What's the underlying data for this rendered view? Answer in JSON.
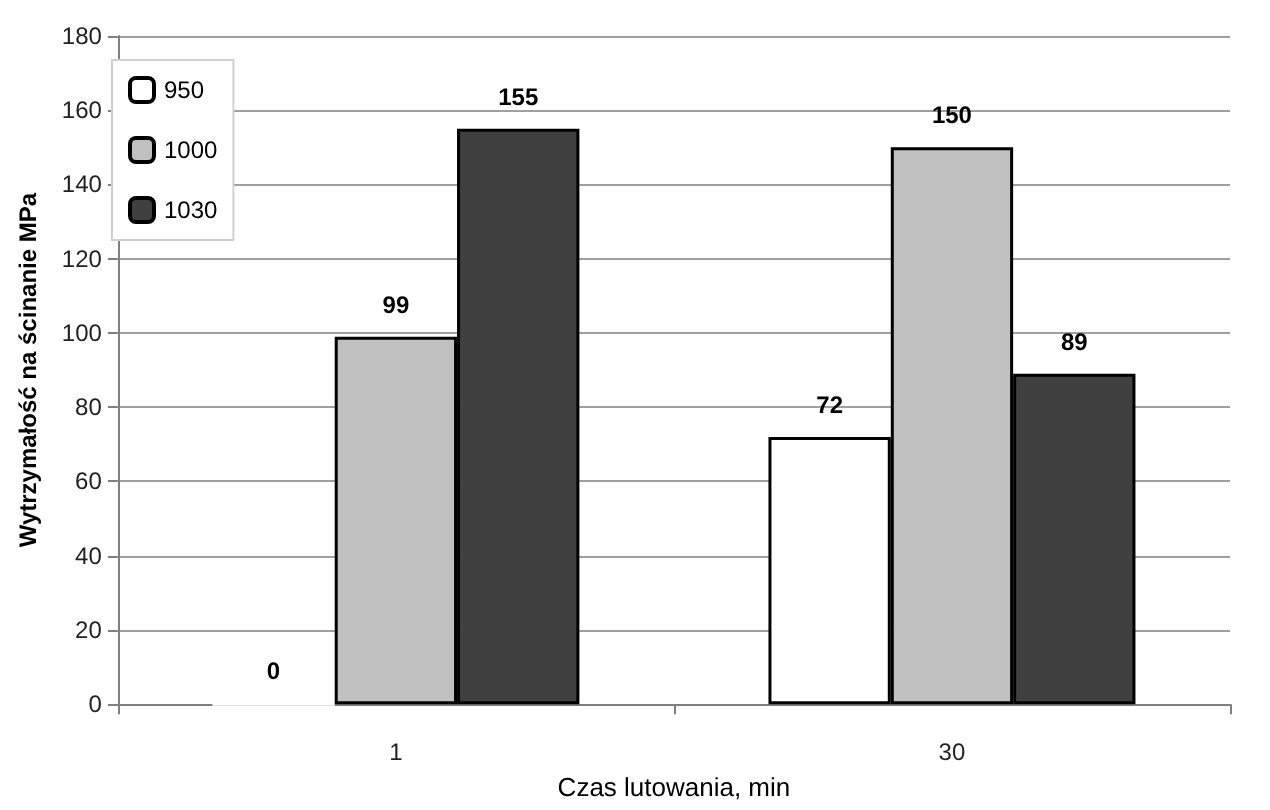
{
  "chart_data": {
    "type": "bar",
    "xlabel": "Czas lutowania, min",
    "ylabel": "Wytrzymałość na ścinanie MPa",
    "categories": [
      "1",
      "30"
    ],
    "series": [
      {
        "name": "950",
        "color": "#ffffff",
        "values": [
          0,
          72
        ]
      },
      {
        "name": "1000",
        "color": "#c0c0c0",
        "values": [
          99,
          150
        ]
      },
      {
        "name": "1030",
        "color": "#404040",
        "values": [
          155,
          89
        ]
      }
    ],
    "ylim": [
      0,
      180
    ],
    "yticks": [
      0,
      20,
      40,
      60,
      80,
      100,
      120,
      140,
      160,
      180
    ],
    "grid": "y",
    "legend": "top left",
    "data_labels": true
  }
}
